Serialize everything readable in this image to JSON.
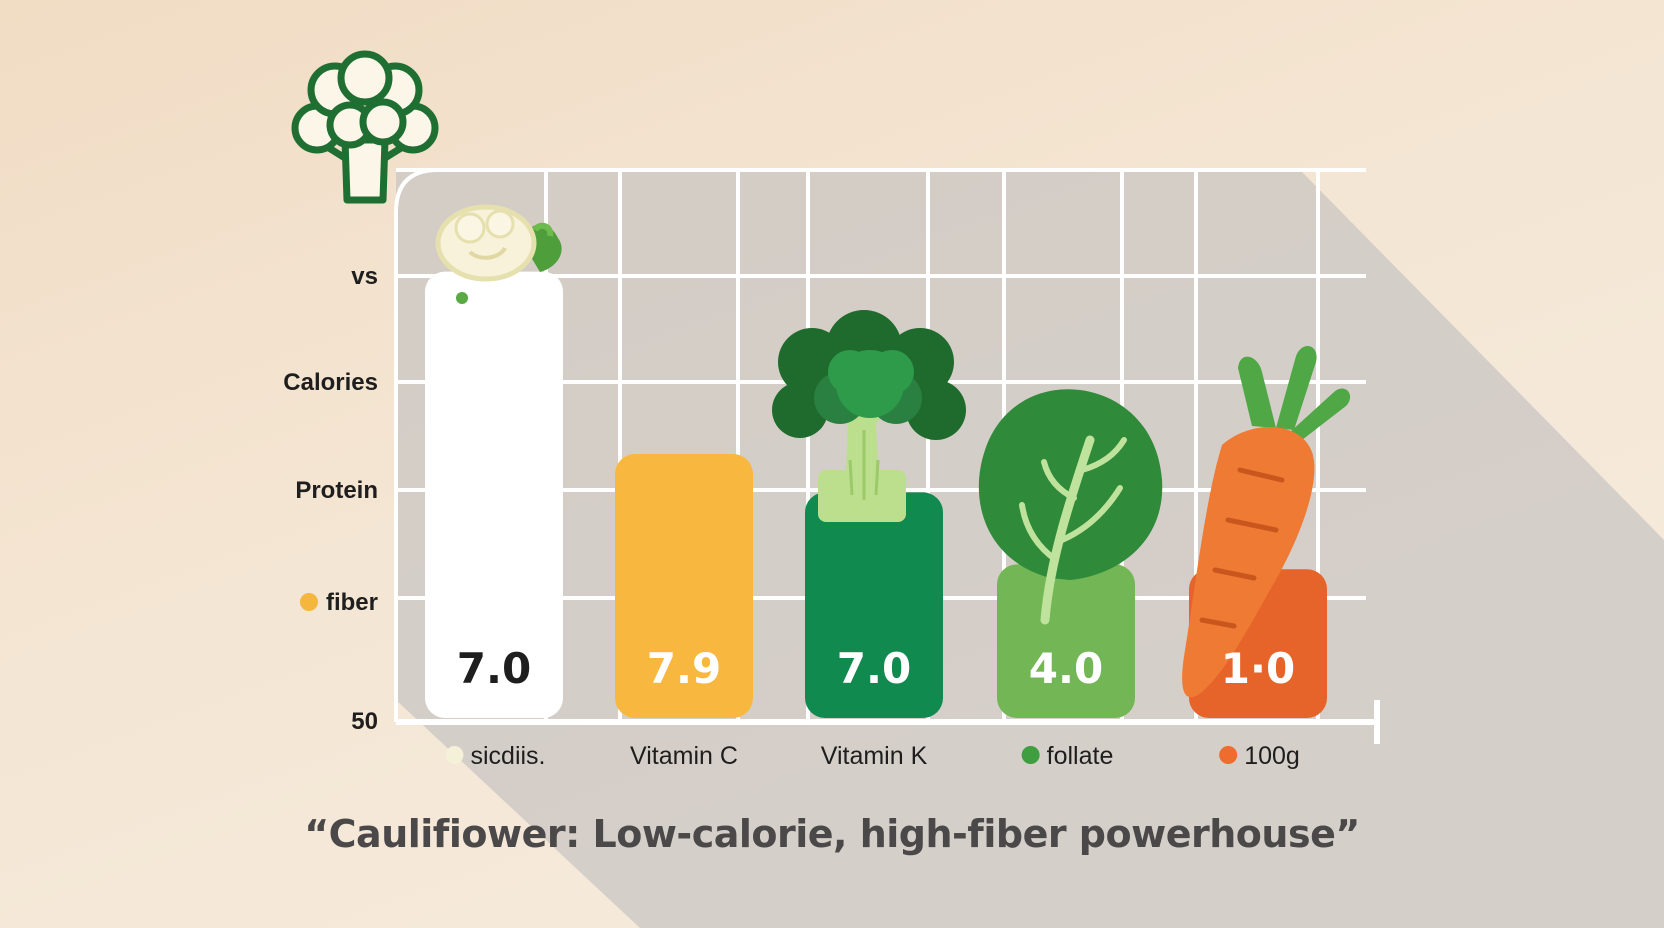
{
  "chart_data": {
    "type": "bar",
    "categories": [
      "sicdiis.",
      "Vitamin C",
      "Vitamin K",
      "follate",
      "100g"
    ],
    "values": [
      7.0,
      7.9,
      7.0,
      4.0,
      1.0
    ],
    "value_labels": [
      "7.0",
      "7.9",
      "7.0",
      "4.0",
      "1·0"
    ],
    "bar_levels": [
      0.93,
      0.55,
      0.47,
      0.32,
      0.31
    ],
    "bar_colors": [
      "#ffffff",
      "#f8b840",
      "#118a50",
      "#73b655",
      "#e66329"
    ],
    "value_label_colors": [
      "#1e1e1e",
      "#ffffff",
      "#ffffff",
      "#ffffff",
      "#ffffff"
    ],
    "category_dot_colors": [
      "#f5f0d8",
      null,
      null,
      "#3f9e3f",
      "#ef6c2e"
    ],
    "y_labels": [
      "vs",
      "Calories",
      "Protein",
      "fiber",
      "50"
    ],
    "y_label_dot_colors": [
      null,
      null,
      null,
      "#f4b63c",
      null
    ],
    "grid": true,
    "icons": [
      "cauliflower-icon",
      "broccoli-icon",
      "spinach-icon",
      "carrot-icon"
    ]
  },
  "caption": "“Caulifiower: Low-calorie, high-fiber powerhouse”",
  "colors": {
    "icon_outline": "#1f6e32",
    "shadow": "#c9c6c3",
    "grid": "#ffffff"
  }
}
